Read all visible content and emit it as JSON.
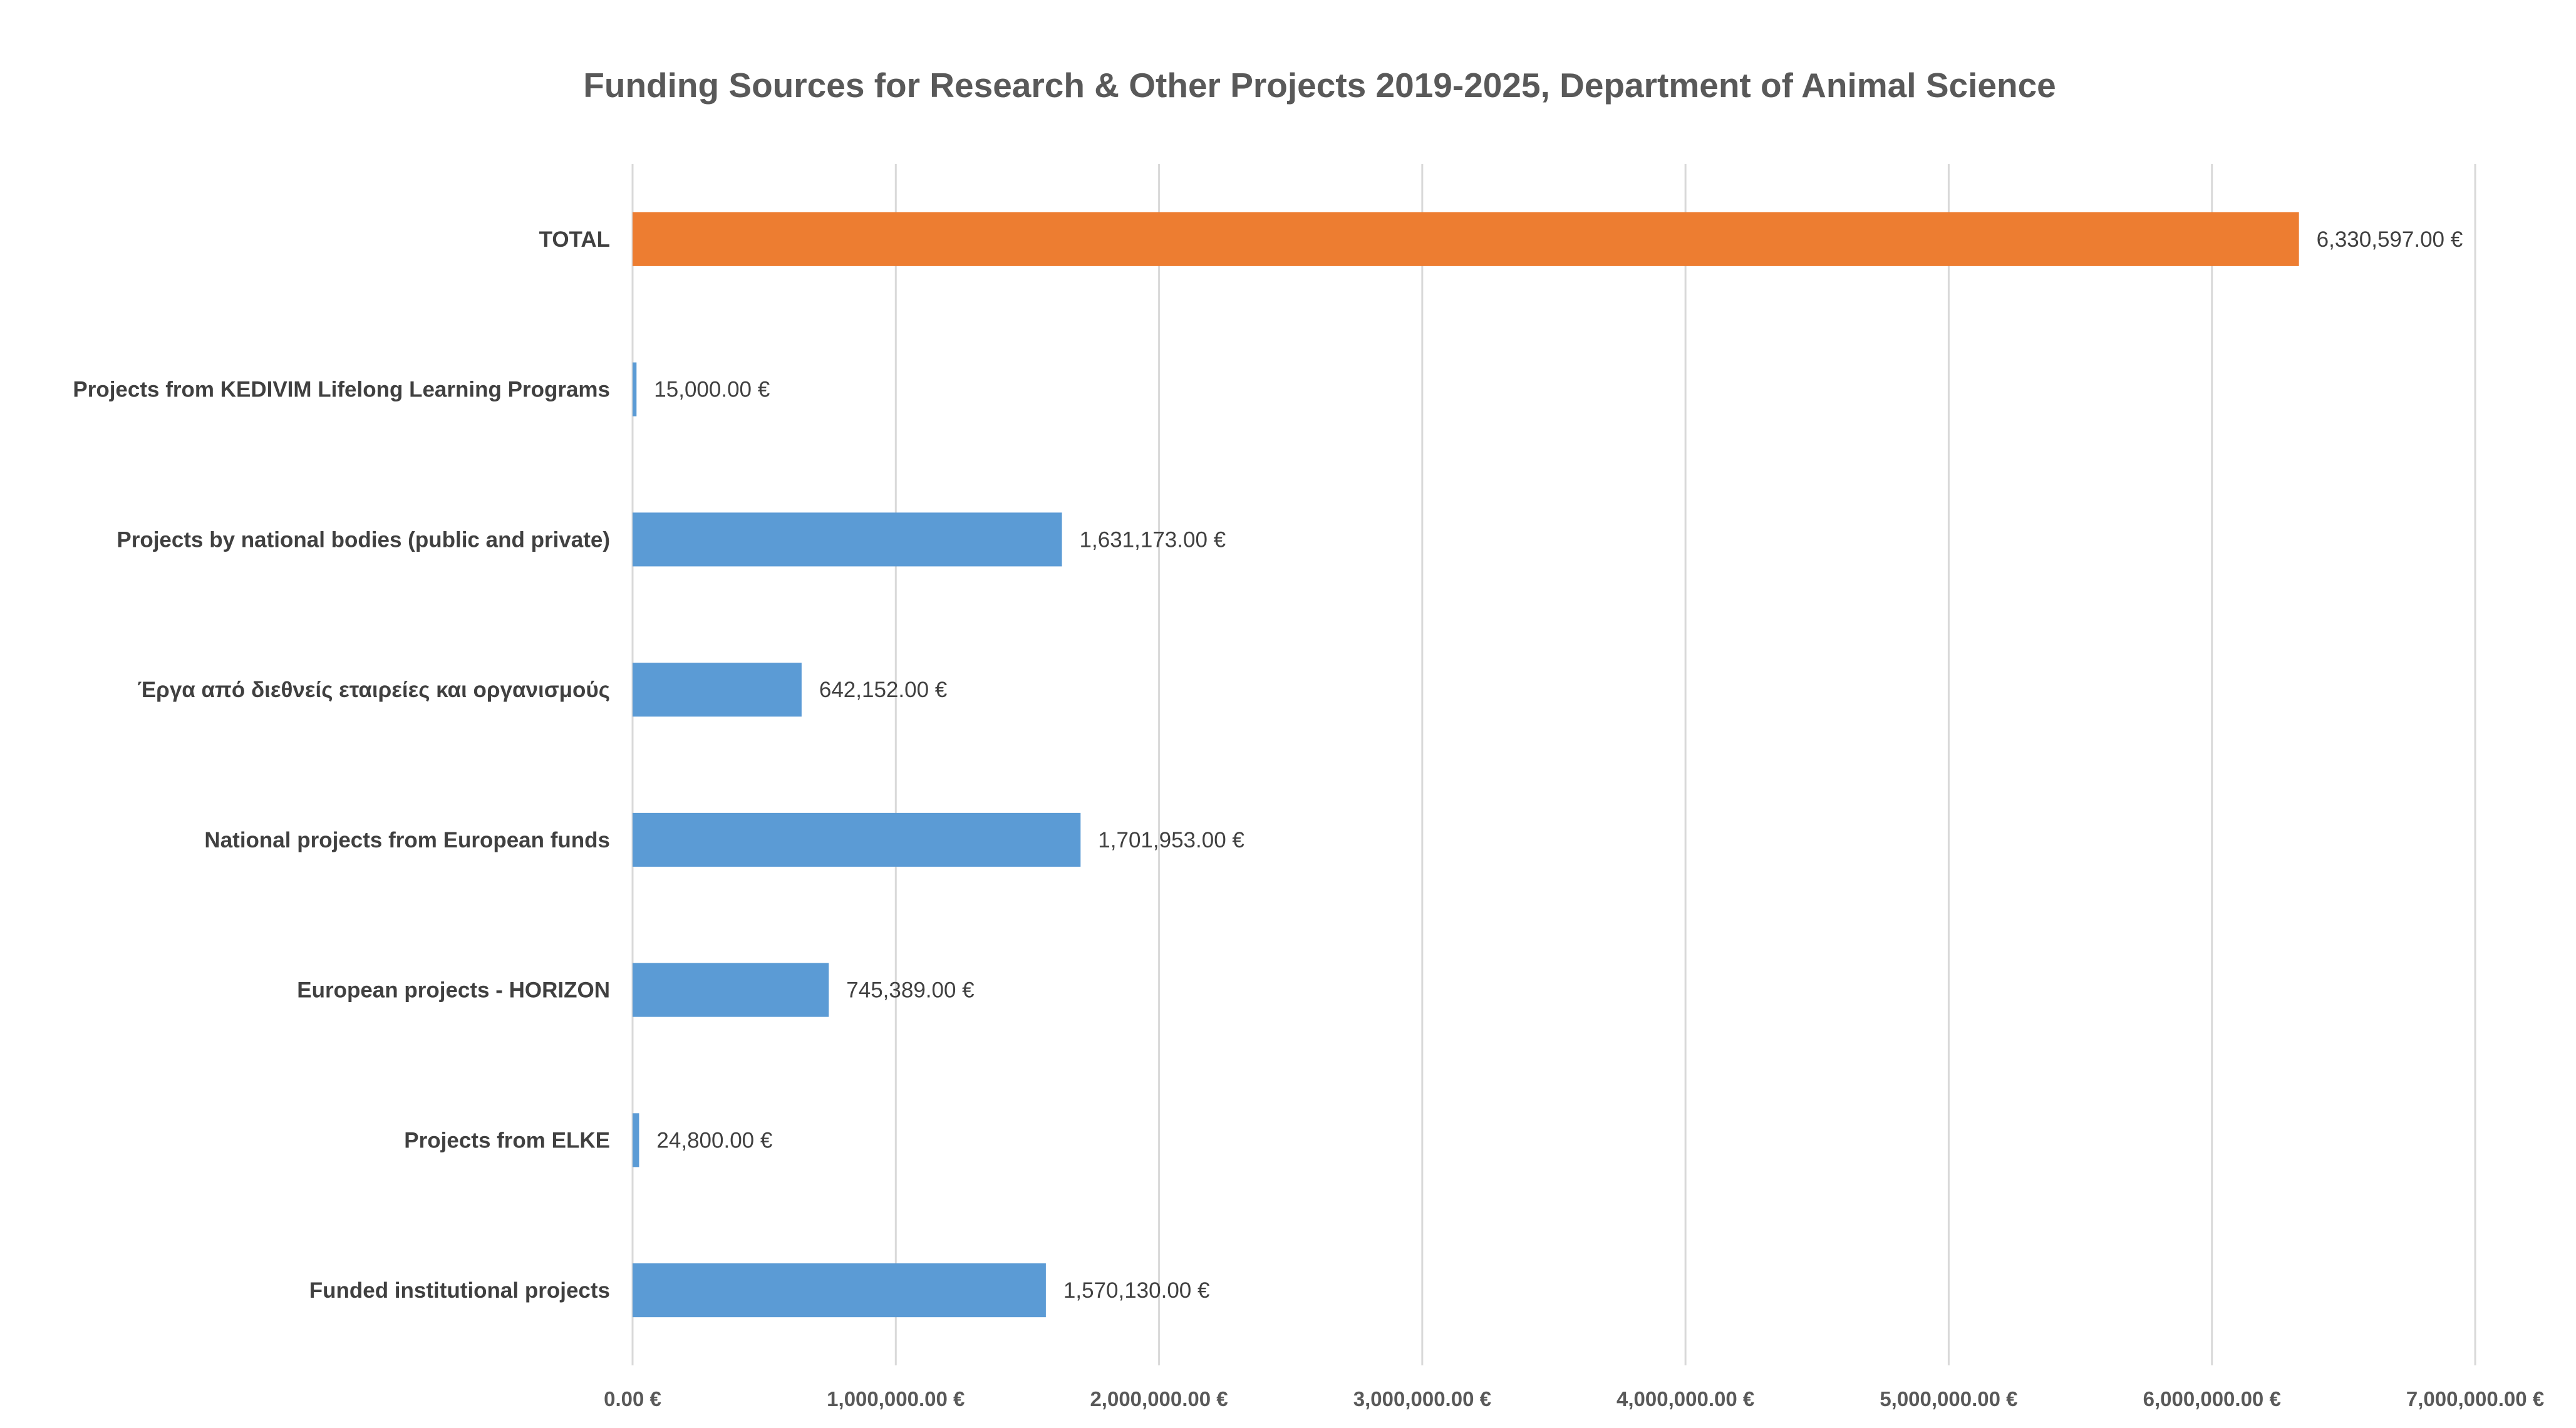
{
  "chart_data": {
    "type": "bar",
    "orientation": "horizontal",
    "title": "Funding Sources for Research & Other Projects 2019-2025, Department of Animal Science",
    "xlabel": "",
    "ylabel": "",
    "xlim": [
      0,
      7000000
    ],
    "grid": true,
    "legend": "none",
    "x_ticks": [
      {
        "value": 0,
        "label": "0.00 €"
      },
      {
        "value": 1000000,
        "label": "1,000,000.00 €"
      },
      {
        "value": 2000000,
        "label": "2,000,000.00 €"
      },
      {
        "value": 3000000,
        "label": "3,000,000.00 €"
      },
      {
        "value": 4000000,
        "label": "4,000,000.00 €"
      },
      {
        "value": 5000000,
        "label": "5,000,000.00 €"
      },
      {
        "value": 6000000,
        "label": "6,000,000.00 €"
      },
      {
        "value": 7000000,
        "label": "7,000,000.00 €"
      }
    ],
    "bars": [
      {
        "category": "TOTAL",
        "value": 6330597,
        "label": "6,330,597.00 €",
        "color": "#ED7D31"
      },
      {
        "category": "Projects from KEDIVIM Lifelong Learning Programs",
        "value": 15000,
        "label": "15,000.00 €",
        "color": "#5B9BD5"
      },
      {
        "category": "Projects by national bodies (public and private)",
        "value": 1631173,
        "label": "1,631,173.00 €",
        "color": "#5B9BD5"
      },
      {
        "category": "Έργα από διεθνείς εταιρείες και οργανισμούς",
        "value": 642152,
        "label": "642,152.00 €",
        "color": "#5B9BD5"
      },
      {
        "category": "National projects from European funds",
        "value": 1701953,
        "label": "1,701,953.00 €",
        "color": "#5B9BD5"
      },
      {
        "category": "European projects - HORIZON",
        "value": 745389,
        "label": "745,389.00 €",
        "color": "#5B9BD5"
      },
      {
        "category": "Projects from ELKE",
        "value": 24800,
        "label": "24,800.00 €",
        "color": "#5B9BD5"
      },
      {
        "category": "Funded institutional projects",
        "value": 1570130,
        "label": "1,570,130.00 €",
        "color": "#5B9BD5"
      }
    ]
  }
}
